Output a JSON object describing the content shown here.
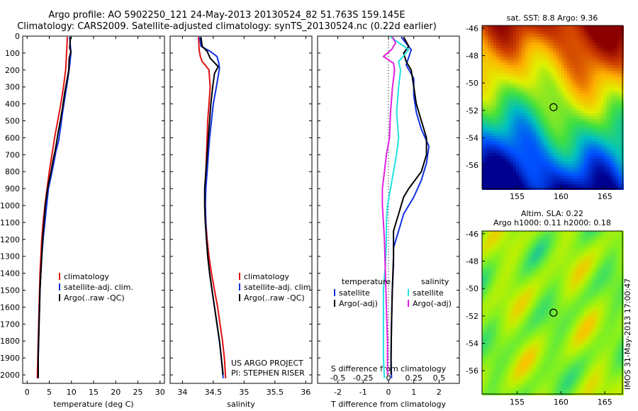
{
  "header": {
    "line1": "Argo profile: AO 5902250_121 24-May-2013 20130524_82 51.763S 159.145E",
    "line2": "Climatology: CARS2009. Satellite-adjusted climatology: synTS_20130524.nc (0.22d earlier)"
  },
  "project": {
    "line1": "US ARGO PROJECT",
    "line2": "PI: STEPHEN RISER"
  },
  "vertical_label": "IMOS 31-May-2013 17:00:47",
  "colors": {
    "climatology": "#e01010",
    "satellite": "#1030e0",
    "argo": "#000000",
    "cyan": "#20e0e0",
    "magenta": "#e020e0"
  },
  "chart_data": [
    {
      "type": "line",
      "xlabel": "temperature (deg C)",
      "xlim": [
        -1,
        31
      ],
      "xticks": [
        0,
        5,
        10,
        15,
        20,
        25,
        30
      ],
      "ylim": [
        0,
        2050
      ],
      "yticks": [
        0,
        100,
        200,
        300,
        400,
        500,
        600,
        700,
        800,
        900,
        1000,
        1100,
        1200,
        1300,
        1400,
        1500,
        1600,
        1700,
        1800,
        1900,
        2000
      ],
      "legend": [
        "climatology",
        "satellite-adj. clim.",
        "Argo(..raw -QC)"
      ],
      "series": [
        {
          "name": "climatology",
          "color": "climatology",
          "points": [
            [
              9.1,
              5
            ],
            [
              8.9,
              100
            ],
            [
              8.7,
              200
            ],
            [
              8.2,
              300
            ],
            [
              7.6,
              400
            ],
            [
              6.9,
              500
            ],
            [
              6.2,
              600
            ],
            [
              5.6,
              700
            ],
            [
              5.0,
              800
            ],
            [
              4.5,
              900
            ],
            [
              4.0,
              1000
            ],
            [
              3.6,
              1100
            ],
            [
              3.3,
              1200
            ],
            [
              3.1,
              1300
            ],
            [
              2.9,
              1400
            ],
            [
              2.8,
              1500
            ],
            [
              2.7,
              1600
            ],
            [
              2.6,
              1700
            ],
            [
              2.5,
              1800
            ],
            [
              2.4,
              1900
            ],
            [
              2.3,
              2020
            ]
          ]
        },
        {
          "name": "satellite-adj. clim.",
          "color": "satellite",
          "points": [
            [
              9.6,
              5
            ],
            [
              9.9,
              100
            ],
            [
              9.6,
              170
            ],
            [
              9.2,
              250
            ],
            [
              8.6,
              350
            ],
            [
              8.0,
              450
            ],
            [
              7.5,
              550
            ],
            [
              7.1,
              620
            ],
            [
              6.5,
              680
            ],
            [
              6.0,
              750
            ],
            [
              5.4,
              830
            ],
            [
              4.8,
              900
            ],
            [
              4.4,
              1000
            ],
            [
              4.0,
              1100
            ],
            [
              3.6,
              1200
            ],
            [
              3.3,
              1300
            ],
            [
              3.1,
              1400
            ],
            [
              2.9,
              1500
            ],
            [
              2.8,
              1600
            ],
            [
              2.7,
              1700
            ],
            [
              2.6,
              1800
            ],
            [
              2.5,
              1900
            ],
            [
              2.5,
              2020
            ]
          ]
        },
        {
          "name": "Argo(..raw -QC)",
          "color": "argo",
          "points": [
            [
              9.8,
              5
            ],
            [
              9.6,
              70
            ],
            [
              9.9,
              90
            ],
            [
              9.5,
              130
            ],
            [
              9.4,
              200
            ],
            [
              9.0,
              260
            ],
            [
              8.5,
              330
            ],
            [
              8.0,
              420
            ],
            [
              7.5,
              500
            ],
            [
              7.0,
              570
            ],
            [
              6.7,
              620
            ],
            [
              6.3,
              680
            ],
            [
              5.8,
              740
            ],
            [
              5.4,
              800
            ],
            [
              4.9,
              860
            ],
            [
              4.5,
              920
            ],
            [
              4.1,
              1000
            ],
            [
              3.8,
              1100
            ],
            [
              3.5,
              1200
            ],
            [
              3.3,
              1300
            ],
            [
              3.1,
              1400
            ],
            [
              2.9,
              1500
            ],
            [
              2.8,
              1600
            ],
            [
              2.7,
              1700
            ],
            [
              2.6,
              1800
            ],
            [
              2.5,
              1900
            ],
            [
              2.5,
              2020
            ]
          ]
        }
      ]
    },
    {
      "type": "line",
      "xlabel": "salinity",
      "xlim": [
        33.8,
        36.1
      ],
      "xticks": [
        34,
        34.5,
        35,
        35.5,
        36
      ],
      "ylim": [
        0,
        2050
      ],
      "legend": [
        "climatology",
        "satellite-adj. clim.",
        "Argo(..raw -QC)"
      ],
      "series": [
        {
          "name": "climatology",
          "color": "climatology",
          "points": [
            [
              34.26,
              5
            ],
            [
              34.27,
              80
            ],
            [
              34.29,
              120
            ],
            [
              34.32,
              150
            ],
            [
              34.38,
              175
            ],
            [
              34.43,
              200
            ],
            [
              34.45,
              300
            ],
            [
              34.43,
              400
            ],
            [
              34.41,
              500
            ],
            [
              34.4,
              600
            ],
            [
              34.39,
              700
            ],
            [
              34.38,
              800
            ],
            [
              34.37,
              900
            ],
            [
              34.37,
              1000
            ],
            [
              34.38,
              1100
            ],
            [
              34.4,
              1200
            ],
            [
              34.43,
              1300
            ],
            [
              34.47,
              1400
            ],
            [
              34.52,
              1500
            ],
            [
              34.57,
              1600
            ],
            [
              34.61,
              1700
            ],
            [
              34.65,
              1800
            ],
            [
              34.68,
              1900
            ],
            [
              34.7,
              2020
            ]
          ]
        },
        {
          "name": "satellite-adj. clim.",
          "color": "satellite",
          "points": [
            [
              34.28,
              5
            ],
            [
              34.3,
              60
            ],
            [
              34.45,
              90
            ],
            [
              34.56,
              120
            ],
            [
              34.59,
              160
            ],
            [
              34.6,
              190
            ],
            [
              34.55,
              300
            ],
            [
              34.5,
              400
            ],
            [
              34.47,
              500
            ],
            [
              34.44,
              600
            ],
            [
              34.42,
              700
            ],
            [
              34.4,
              800
            ],
            [
              34.38,
              900
            ],
            [
              34.37,
              1000
            ],
            [
              34.38,
              1100
            ],
            [
              34.39,
              1200
            ],
            [
              34.41,
              1300
            ],
            [
              34.44,
              1400
            ],
            [
              34.48,
              1500
            ],
            [
              34.52,
              1600
            ],
            [
              34.56,
              1700
            ],
            [
              34.6,
              1800
            ],
            [
              34.63,
              1900
            ],
            [
              34.66,
              2020
            ]
          ]
        },
        {
          "name": "Argo(..raw -QC)",
          "color": "argo",
          "points": [
            [
              34.3,
              5
            ],
            [
              34.32,
              60
            ],
            [
              34.4,
              90
            ],
            [
              34.45,
              130
            ],
            [
              34.58,
              180
            ],
            [
              34.52,
              220
            ],
            [
              34.49,
              300
            ],
            [
              34.46,
              400
            ],
            [
              34.44,
              500
            ],
            [
              34.42,
              600
            ],
            [
              34.4,
              700
            ],
            [
              34.38,
              800
            ],
            [
              34.36,
              900
            ],
            [
              34.36,
              1000
            ],
            [
              34.37,
              1100
            ],
            [
              34.39,
              1200
            ],
            [
              34.41,
              1300
            ],
            [
              34.44,
              1400
            ],
            [
              34.48,
              1500
            ],
            [
              34.52,
              1600
            ],
            [
              34.56,
              1700
            ],
            [
              34.6,
              1800
            ],
            [
              34.63,
              1900
            ],
            [
              34.66,
              2000
            ]
          ]
        }
      ]
    },
    {
      "type": "line",
      "xlabel": "T difference from climatology",
      "xlabel_top": "S difference from climatology",
      "xlim": [
        -2.8,
        2.8
      ],
      "xticks": [
        -2,
        -1,
        0,
        1,
        2
      ],
      "xtick_labels": [
        "-2",
        "-1",
        "0",
        "1",
        "2"
      ],
      "s_ticks": [
        -0.5,
        -0.25,
        0,
        0.25,
        0.5
      ],
      "s_tick_labels": [
        "-0.5",
        "-0.25",
        "0",
        "0.25",
        "0.5"
      ],
      "ylim": [
        0,
        2050
      ],
      "legend": {
        "temperature_title": "temperature",
        "salinity_title": "salinity",
        "satellite": "satellite",
        "argo_adj": "Argo(-adj)"
      },
      "series": [
        {
          "name": "temperature satellite",
          "color": "satellite",
          "points": [
            [
              0.5,
              5
            ],
            [
              0.9,
              80
            ],
            [
              0.7,
              170
            ],
            [
              1.0,
              250
            ],
            [
              1.0,
              350
            ],
            [
              1.1,
              450
            ],
            [
              1.3,
              550
            ],
            [
              1.6,
              650
            ],
            [
              1.5,
              750
            ],
            [
              1.3,
              850
            ],
            [
              1.0,
              950
            ],
            [
              0.6,
              1050
            ],
            [
              0.4,
              1150
            ],
            [
              0.2,
              1250
            ],
            [
              0.2,
              1350
            ],
            [
              0.15,
              1500
            ],
            [
              0.12,
              1700
            ],
            [
              0.1,
              1900
            ],
            [
              0.12,
              2020
            ]
          ]
        },
        {
          "name": "temperature Argo(-adj)",
          "color": "argo",
          "points": [
            [
              0.6,
              5
            ],
            [
              0.8,
              60
            ],
            [
              0.6,
              100
            ],
            [
              0.7,
              150
            ],
            [
              0.9,
              200
            ],
            [
              1.0,
              300
            ],
            [
              1.1,
              400
            ],
            [
              1.3,
              500
            ],
            [
              1.5,
              600
            ],
            [
              1.5,
              700
            ],
            [
              1.3,
              800
            ],
            [
              0.8,
              900
            ],
            [
              0.6,
              950
            ],
            [
              0.4,
              1050
            ],
            [
              0.2,
              1150
            ],
            [
              0.2,
              1300
            ],
            [
              0.15,
              1500
            ],
            [
              0.12,
              1700
            ],
            [
              0.1,
              1900
            ],
            [
              0.1,
              2000
            ]
          ]
        },
        {
          "name": "salinity satellite",
          "color": "cyan",
          "points": [
            [
              0.02,
              5
            ],
            [
              0.2,
              80
            ],
            [
              0.1,
              150
            ],
            [
              0.12,
              200
            ],
            [
              0.1,
              300
            ],
            [
              0.08,
              450
            ],
            [
              0.1,
              600
            ],
            [
              0.08,
              700
            ],
            [
              0.05,
              800
            ],
            [
              0.02,
              900
            ],
            [
              -0.01,
              1000
            ],
            [
              -0.02,
              1100
            ],
            [
              -0.02,
              1200
            ],
            [
              -0.03,
              1350
            ],
            [
              -0.05,
              1500
            ],
            [
              -0.05,
              1700
            ],
            [
              -0.05,
              1900
            ],
            [
              -0.04,
              2020
            ]
          ]
        },
        {
          "name": "salinity Argo(-adj)",
          "color": "magenta",
          "points": [
            [
              0.04,
              5
            ],
            [
              0.07,
              40
            ],
            [
              0.03,
              80
            ],
            [
              -0.05,
              120
            ],
            [
              0.05,
              160
            ],
            [
              0.06,
              200
            ],
            [
              0.04,
              300
            ],
            [
              0.02,
              450
            ],
            [
              0.01,
              600
            ],
            [
              -0.02,
              700
            ],
            [
              -0.04,
              800
            ],
            [
              -0.06,
              900
            ],
            [
              -0.06,
              1000
            ],
            [
              -0.05,
              1100
            ],
            [
              -0.04,
              1200
            ],
            [
              -0.03,
              1400
            ],
            [
              -0.02,
              1600
            ],
            [
              -0.01,
              1800
            ],
            [
              -0.01,
              2000
            ]
          ]
        }
      ]
    },
    {
      "type": "heatmap",
      "title": "sat. SST: 8.8  Argo: 9.36",
      "xlim": [
        151,
        167
      ],
      "ylim": [
        -57.7,
        -45.8
      ],
      "xticks": [
        155,
        160,
        165
      ],
      "yticks": [
        -46,
        -48,
        -50,
        -52,
        -54,
        -56
      ],
      "argo_position": [
        159.145,
        -51.763
      ],
      "colormap": [
        "#00008f",
        "#0050ff",
        "#00c0c0",
        "#40e040",
        "#e0f000",
        "#ffb000",
        "#d04000",
        "#8b0000"
      ]
    },
    {
      "type": "heatmap",
      "title": "Altim. SLA: 0.22",
      "subtitle": "Argo h1000: 0.11 h2000: 0.18",
      "xlim": [
        151,
        167
      ],
      "ylim": [
        -57.7,
        -45.8
      ],
      "xticks": [
        155,
        160,
        165
      ],
      "yticks": [
        -46,
        -48,
        -50,
        -52,
        -54,
        -56
      ],
      "argo_position": [
        159.145,
        -51.763
      ],
      "colormap": [
        "#00b0c0",
        "#40e060",
        "#80f020",
        "#c0f000",
        "#ffc000",
        "#ff7000"
      ]
    }
  ]
}
